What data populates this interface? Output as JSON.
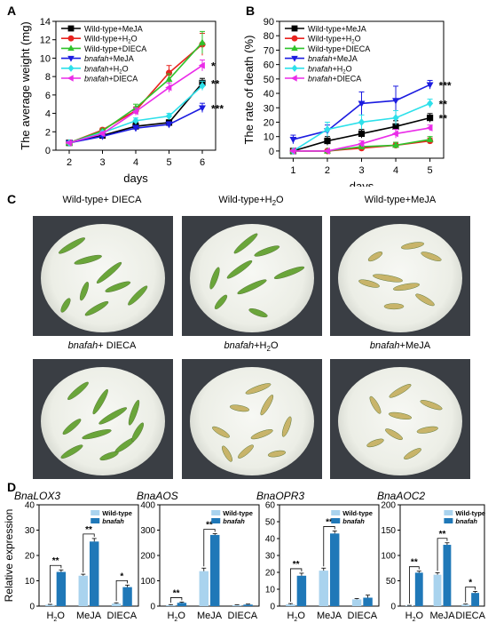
{
  "panels": {
    "A": "A",
    "B": "B",
    "C": "C",
    "D": "D"
  },
  "colors": {
    "wt_meja": "#000000",
    "wt_h2o": "#e8231f",
    "wt_dieca": "#2fc22b",
    "mut_meja": "#1c1ce0",
    "mut_h2o": "#2de0ea",
    "mut_dieca": "#ea2ce8",
    "wt_bar": "#a9d3ee",
    "mut_bar": "#1f78b8",
    "larva_green": "#6aa53a",
    "larva_yellow": "#c8b46a"
  },
  "chart_data": [
    {
      "type": "line",
      "id": "A",
      "xlabel": "days",
      "ylabel": "The average weight (mg)",
      "x": [
        2,
        3,
        4,
        5,
        6
      ],
      "xlim": [
        1.6,
        6.4
      ],
      "ylim": [
        0,
        14
      ],
      "yticks": [
        "0",
        "2",
        "4",
        "6",
        "8",
        "10",
        "12",
        "14"
      ],
      "xticks": [
        "2",
        "3",
        "4",
        "5",
        "6"
      ],
      "legend_position": "top-left",
      "series": [
        {
          "name": "Wild-type+MeJA",
          "sup": "",
          "italic": false,
          "color": "#000000",
          "marker": "square",
          "values": [
            0.8,
            1.6,
            2.6,
            3.0,
            7.3
          ],
          "err": [
            0.1,
            0.2,
            0.4,
            0.3,
            0.5
          ]
        },
        {
          "name": "Wild-type+H",
          "sup": "2",
          "tail": "O",
          "italic": false,
          "color": "#e8231f",
          "marker": "circle",
          "values": [
            0.8,
            2.2,
            4.3,
            8.4,
            11.5
          ],
          "err": [
            0.1,
            0.2,
            0.4,
            0.8,
            1.2
          ]
        },
        {
          "name": "Wild-type+DIECA",
          "sup": "",
          "italic": false,
          "color": "#2fc22b",
          "marker": "triangle-up",
          "values": [
            0.8,
            2.1,
            4.6,
            7.7,
            11.7
          ],
          "err": [
            0.1,
            0.2,
            0.4,
            0.6,
            1.2
          ]
        },
        {
          "name": "bnafah+MeJA",
          "sup": "",
          "italic": true,
          "color": "#1c1ce0",
          "marker": "triangle-down",
          "values": [
            0.8,
            1.5,
            2.4,
            2.8,
            4.6
          ],
          "err": [
            0.1,
            0.2,
            0.3,
            0.3,
            0.5
          ]
        },
        {
          "name": "bnafah+H",
          "sup": "2",
          "tail": "O",
          "italic": true,
          "color": "#2de0ea",
          "marker": "diamond",
          "values": [
            0.8,
            1.9,
            3.2,
            3.7,
            7.0
          ],
          "err": [
            0.1,
            0.2,
            0.3,
            0.3,
            0.5
          ]
        },
        {
          "name": "bnafah+DIECA",
          "sup": "",
          "italic": true,
          "color": "#ea2ce8",
          "marker": "triangle-left",
          "values": [
            0.8,
            1.8,
            4.2,
            6.8,
            9.2
          ],
          "err": [
            0.1,
            0.2,
            0.4,
            0.5,
            0.6
          ]
        }
      ],
      "annotations": [
        {
          "text": "*",
          "series": 5
        },
        {
          "text": "**",
          "series": 0
        },
        {
          "text": "***",
          "series": 3
        }
      ]
    },
    {
      "type": "line",
      "id": "B",
      "xlabel": "days",
      "ylabel": "The rate of death (%)",
      "x": [
        1,
        2,
        3,
        4,
        5
      ],
      "xlim": [
        0.6,
        5.4
      ],
      "ylim": [
        -5,
        90
      ],
      "yticks": [
        "0",
        "10",
        "20",
        "30",
        "40",
        "50",
        "60",
        "70",
        "80",
        "90"
      ],
      "xticks": [
        "1",
        "2",
        "3",
        "4",
        "5"
      ],
      "legend_position": "top-left",
      "series": [
        {
          "name": "Wild-type+MeJA",
          "color": "#000000",
          "marker": "square",
          "values": [
            0,
            7,
            12,
            17,
            23
          ],
          "err": [
            1,
            3,
            3,
            4,
            3
          ]
        },
        {
          "name": "Wild-type+H2O",
          "color": "#e8231f",
          "marker": "circle",
          "values": [
            0,
            0,
            2,
            4,
            7
          ],
          "err": [
            0,
            0,
            1,
            2,
            2
          ]
        },
        {
          "name": "Wild-type+DIECA",
          "color": "#2fc22b",
          "marker": "triangle-up",
          "values": [
            0,
            0,
            3,
            4,
            8
          ],
          "err": [
            0,
            0,
            1,
            2,
            2
          ]
        },
        {
          "name": "bnafah+MeJA",
          "color": "#1c1ce0",
          "marker": "triangle-down",
          "values": [
            8,
            14,
            33,
            35,
            46
          ],
          "err": [
            3,
            4,
            8,
            10,
            3
          ]
        },
        {
          "name": "bnafah+H2O",
          "color": "#2de0ea",
          "marker": "diamond",
          "values": [
            0,
            15,
            20,
            23,
            33
          ],
          "err": [
            0,
            5,
            5,
            5,
            3
          ]
        },
        {
          "name": "bnafah+DIECA",
          "color": "#ea2ce8",
          "marker": "triangle-left",
          "values": [
            0,
            0,
            5,
            12,
            16
          ],
          "err": [
            0,
            0,
            2,
            3,
            2
          ]
        }
      ],
      "annotations": [
        {
          "text": "***",
          "series": 3
        },
        {
          "text": "**",
          "series": 4
        },
        {
          "text": "**",
          "series": 0
        }
      ]
    },
    {
      "type": "bar",
      "id": "D1",
      "title": "BnaLOX3",
      "ylabel": "Relative expression",
      "categories": [
        "H2O",
        "MeJA",
        "DIECA"
      ],
      "ylim": [
        0,
        40
      ],
      "yticks": [
        "0",
        "10",
        "20",
        "30",
        "40"
      ],
      "series": [
        {
          "name": "Wild-type",
          "values": [
            0.5,
            12.0,
            1.0
          ],
          "err": [
            0.2,
            0.6,
            0.3
          ]
        },
        {
          "name": "bnafah",
          "values": [
            13.5,
            25.5,
            7.5
          ],
          "err": [
            0.8,
            1.2,
            0.8
          ]
        }
      ],
      "sig": [
        "**",
        "**",
        "*"
      ]
    },
    {
      "type": "bar",
      "id": "D2",
      "title": "BnaAOS",
      "ylabel": "",
      "categories": [
        "H2O",
        "MeJA",
        "DIECA"
      ],
      "ylim": [
        0,
        400
      ],
      "yticks": [
        "0",
        "100",
        "200",
        "300",
        "400"
      ],
      "series": [
        {
          "name": "Wild-type",
          "values": [
            4,
            138,
            4
          ],
          "err": [
            2,
            12,
            1
          ]
        },
        {
          "name": "bnafah",
          "values": [
            13,
            281,
            6
          ],
          "err": [
            3,
            5,
            2
          ]
        }
      ],
      "sig": [
        "**",
        "**",
        ""
      ]
    },
    {
      "type": "bar",
      "id": "D3",
      "title": "BnaOPR3",
      "ylabel": "",
      "categories": [
        "H2O",
        "MeJA",
        "DIECA"
      ],
      "ylim": [
        0,
        60
      ],
      "yticks": [
        "0",
        "10",
        "20",
        "30",
        "40",
        "50",
        "60"
      ],
      "series": [
        {
          "name": "Wild-type",
          "values": [
            1,
            21,
            4
          ],
          "err": [
            0.5,
            1.5,
            0.5
          ]
        },
        {
          "name": "bnafah",
          "values": [
            18,
            43,
            5
          ],
          "err": [
            1.5,
            1.5,
            1.5
          ]
        }
      ],
      "sig": [
        "**",
        "**",
        ""
      ]
    },
    {
      "type": "bar",
      "id": "D4",
      "title": "BnaAOC2",
      "ylabel": "",
      "categories": [
        "H2O",
        "MeJA",
        "DIECA"
      ],
      "ylim": [
        0,
        200
      ],
      "yticks": [
        "0",
        "50",
        "100",
        "150",
        "200"
      ],
      "series": [
        {
          "name": "Wild-type",
          "values": [
            1,
            62,
            3
          ],
          "err": [
            0.5,
            4,
            1
          ]
        },
        {
          "name": "bnafah",
          "values": [
            66,
            121,
            26
          ],
          "err": [
            3,
            4,
            3
          ]
        }
      ],
      "sig": [
        "**",
        "**",
        "*"
      ]
    }
  ],
  "photos": [
    {
      "pre": "Wild-type+ DIECA",
      "italic_pre": "",
      "sub": "",
      "post": "",
      "larva": "green",
      "count": 8
    },
    {
      "pre": "Wild-type+H",
      "italic_pre": "",
      "sub": "2",
      "post": "O",
      "larva": "green",
      "count": 8
    },
    {
      "pre": "Wild-type+MeJA",
      "italic_pre": "",
      "sub": "",
      "post": "",
      "larva": "yellow",
      "count": 8
    },
    {
      "pre": "+ DIECA",
      "italic_pre": "bnafah",
      "sub": "",
      "post": "",
      "larva": "green",
      "count": 10
    },
    {
      "pre": "+H",
      "italic_pre": "bnafah",
      "sub": "2",
      "post": "O",
      "larva": "yellow",
      "count": 9
    },
    {
      "pre": "+MeJA",
      "italic_pre": "bnafah",
      "sub": "",
      "post": "",
      "larva": "yellow",
      "count": 8
    }
  ]
}
